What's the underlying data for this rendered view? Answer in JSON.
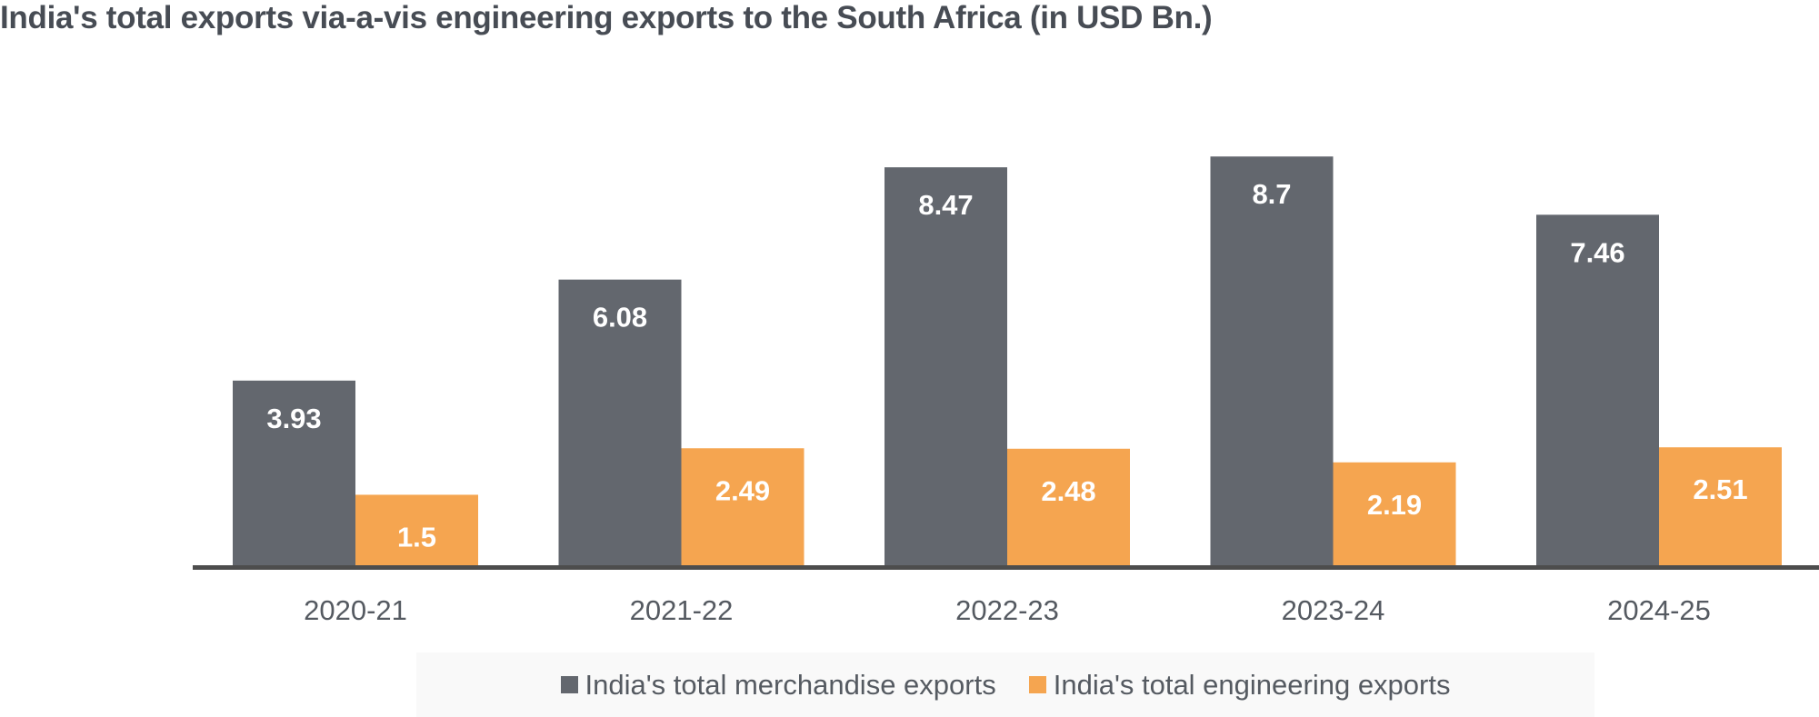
{
  "chart_data": {
    "type": "bar",
    "title": "India's total exports via-a-vis engineering exports to the South Africa (in USD Bn.)",
    "xlabel": "",
    "ylabel": "",
    "ylim": [
      0,
      10
    ],
    "grid": false,
    "legend_position": "bottom",
    "categories": [
      "2020-21",
      "2021-22",
      "2022-23",
      "2023-24",
      "2024-25"
    ],
    "series": [
      {
        "name": "India's total merchandise exports",
        "color": "#63676e",
        "values": [
          3.93,
          6.08,
          8.47,
          8.7,
          7.46
        ],
        "labels": [
          "3.93",
          "6.08",
          "8.47",
          "8.7",
          "7.46"
        ]
      },
      {
        "name": "India's total engineering exports",
        "color": "#f5a550",
        "values": [
          1.5,
          2.49,
          2.48,
          2.19,
          2.51
        ],
        "labels": [
          "1.5",
          "2.49",
          "2.48",
          "2.19",
          "2.51"
        ]
      }
    ]
  }
}
